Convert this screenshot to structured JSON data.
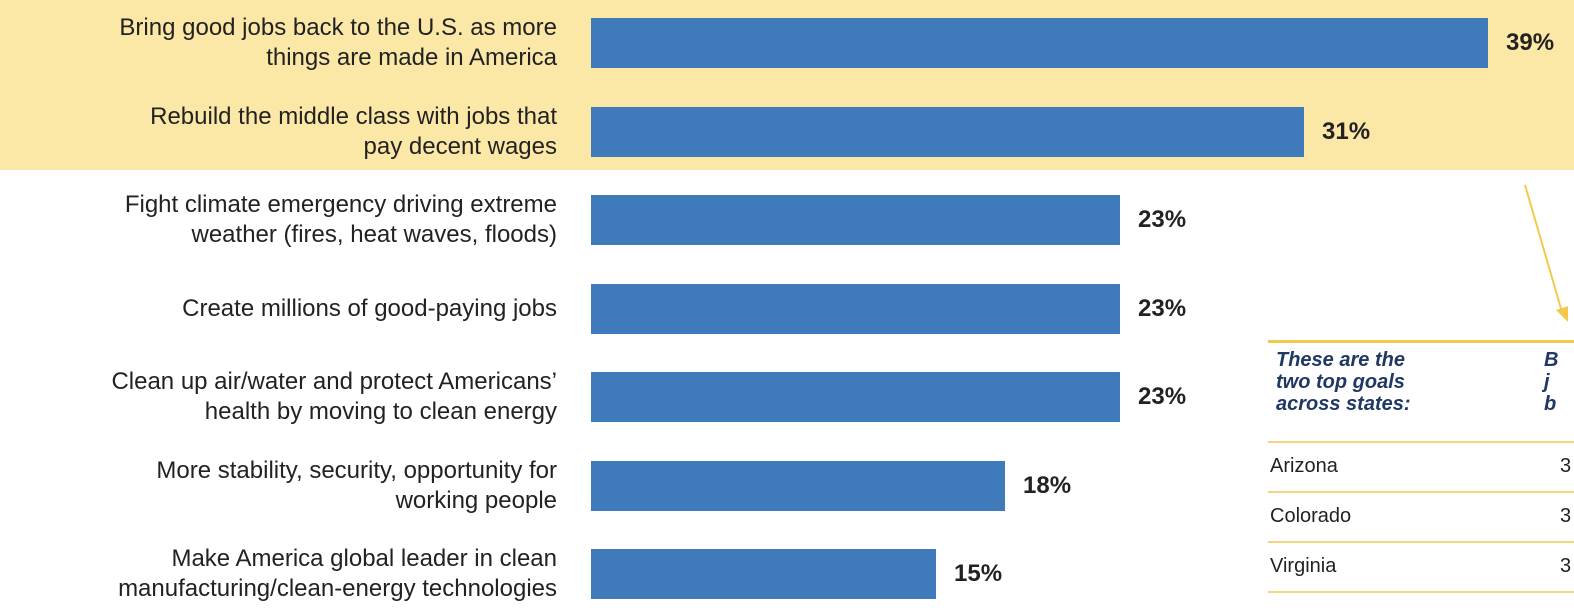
{
  "chart_data": {
    "type": "bar",
    "orientation": "horizontal",
    "categories": [
      "Bring good jobs back to the U.S. as more\nthings are made in America",
      "Rebuild the middle class with jobs that\npay decent wages",
      "Fight climate emergency driving extreme\nweather (fires, heat waves, floods)",
      "Create millions of good-paying jobs",
      "Clean up air/water and protect Americans’\nhealth by moving to clean energy",
      "More stability, security, opportunity for\nworking people",
      "Make America global leader in clean\nmanufacturing/clean-energy technologies"
    ],
    "values": [
      39,
      31,
      23,
      23,
      23,
      18,
      15
    ],
    "value_labels": [
      "39%",
      "31%",
      "23%",
      "23%",
      "23%",
      "18%",
      "15%"
    ],
    "color": "#3f7bba",
    "highlight_color": "#fce8a6"
  },
  "table": {
    "header": [
      "These are the\ntwo top goals\nacross states:",
      "B\nj\nb"
    ],
    "rows": [
      [
        "Arizona",
        "3"
      ],
      [
        "Colorado",
        "3"
      ],
      [
        "Virginia",
        "3"
      ]
    ]
  }
}
